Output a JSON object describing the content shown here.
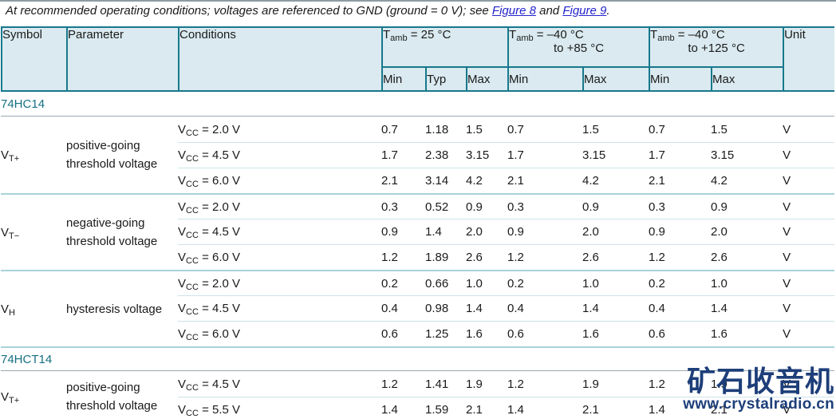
{
  "intro": {
    "text_before": "At recommended operating conditions; voltages are referenced to GND (ground = 0 V); see ",
    "link1": "Figure 8",
    "between": " and ",
    "link2": "Figure 9",
    "after": "."
  },
  "header": {
    "symbol": "Symbol",
    "parameter": "Parameter",
    "conditions": "Conditions",
    "unit": "Unit",
    "temp_groups": [
      {
        "base": "T",
        "sub": "amb",
        "line1": " = 25 °C",
        "line2": ""
      },
      {
        "base": "T",
        "sub": "amb",
        "line1": " = –40 °C",
        "line2": "to +85 °C"
      },
      {
        "base": "T",
        "sub": "amb",
        "line1": " = –40 °C",
        "line2": "to +125 °C"
      }
    ],
    "subcols": [
      "Min",
      "Typ",
      "Max",
      "Min",
      "Max",
      "Min",
      "Max"
    ]
  },
  "table": {
    "sections": [
      {
        "title": "74HC14",
        "groups": [
          {
            "symbol": {
              "base": "V",
              "sub": "T+"
            },
            "parameter": "positive-going threshold voltage",
            "rows": [
              {
                "condition": {
                  "base": "V",
                  "sub": "CC",
                  "rest": " = 2.0 V"
                },
                "values": [
                  "0.7",
                  "1.18",
                  "1.5",
                  "0.7",
                  "1.5",
                  "0.7",
                  "1.5"
                ],
                "unit": "V"
              },
              {
                "condition": {
                  "base": "V",
                  "sub": "CC",
                  "rest": " = 4.5 V"
                },
                "values": [
                  "1.7",
                  "2.38",
                  "3.15",
                  "1.7",
                  "3.15",
                  "1.7",
                  "3.15"
                ],
                "unit": "V"
              },
              {
                "condition": {
                  "base": "V",
                  "sub": "CC",
                  "rest": " = 6.0 V"
                },
                "values": [
                  "2.1",
                  "3.14",
                  "4.2",
                  "2.1",
                  "4.2",
                  "2.1",
                  "4.2"
                ],
                "unit": "V"
              }
            ]
          },
          {
            "symbol": {
              "base": "V",
              "sub": "T−"
            },
            "parameter": "negative-going threshold voltage",
            "rows": [
              {
                "condition": {
                  "base": "V",
                  "sub": "CC",
                  "rest": " = 2.0 V"
                },
                "values": [
                  "0.3",
                  "0.52",
                  "0.9",
                  "0.3",
                  "0.9",
                  "0.3",
                  "0.9"
                ],
                "unit": "V"
              },
              {
                "condition": {
                  "base": "V",
                  "sub": "CC",
                  "rest": " = 4.5 V"
                },
                "values": [
                  "0.9",
                  "1.4",
                  "2.0",
                  "0.9",
                  "2.0",
                  "0.9",
                  "2.0"
                ],
                "unit": "V"
              },
              {
                "condition": {
                  "base": "V",
                  "sub": "CC",
                  "rest": " = 6.0 V"
                },
                "values": [
                  "1.2",
                  "1.89",
                  "2.6",
                  "1.2",
                  "2.6",
                  "1.2",
                  "2.6"
                ],
                "unit": "V"
              }
            ]
          },
          {
            "symbol": {
              "base": "V",
              "sub": "H"
            },
            "parameter": "hysteresis voltage",
            "rows": [
              {
                "condition": {
                  "base": "V",
                  "sub": "CC",
                  "rest": " = 2.0 V"
                },
                "values": [
                  "0.2",
                  "0.66",
                  "1.0",
                  "0.2",
                  "1.0",
                  "0.2",
                  "1.0"
                ],
                "unit": "V"
              },
              {
                "condition": {
                  "base": "V",
                  "sub": "CC",
                  "rest": " = 4.5 V"
                },
                "values": [
                  "0.4",
                  "0.98",
                  "1.4",
                  "0.4",
                  "1.4",
                  "0.4",
                  "1.4"
                ],
                "unit": "V"
              },
              {
                "condition": {
                  "base": "V",
                  "sub": "CC",
                  "rest": " = 6.0 V"
                },
                "values": [
                  "0.6",
                  "1.25",
                  "1.6",
                  "0.6",
                  "1.6",
                  "0.6",
                  "1.6"
                ],
                "unit": "V"
              }
            ]
          }
        ]
      },
      {
        "title": "74HCT14",
        "groups": [
          {
            "symbol": {
              "base": "V",
              "sub": "T+"
            },
            "parameter": "positive-going threshold voltage",
            "rows": [
              {
                "condition": {
                  "base": "V",
                  "sub": "CC",
                  "rest": " = 4.5 V"
                },
                "values": [
                  "1.2",
                  "1.41",
                  "1.9",
                  "1.2",
                  "1.9",
                  "1.2",
                  "1.9"
                ],
                "unit": "V"
              },
              {
                "condition": {
                  "base": "V",
                  "sub": "CC",
                  "rest": " = 5.5 V"
                },
                "values": [
                  "1.4",
                  "1.59",
                  "2.1",
                  "1.4",
                  "2.1",
                  "1.4",
                  "2.1"
                ],
                "unit": "V"
              }
            ]
          }
        ]
      }
    ]
  },
  "watermark": {
    "logo": "矿石收音机",
    "url": "www.crystalradio.cn",
    "color": "#1d3e79"
  },
  "colors": {
    "table_border": "#17788c",
    "header_bg": "#daeaf0",
    "section_title": "#157082",
    "link": "#2323cc",
    "group_divider": "#a9d2da",
    "row_divider": "#cde2e8"
  }
}
